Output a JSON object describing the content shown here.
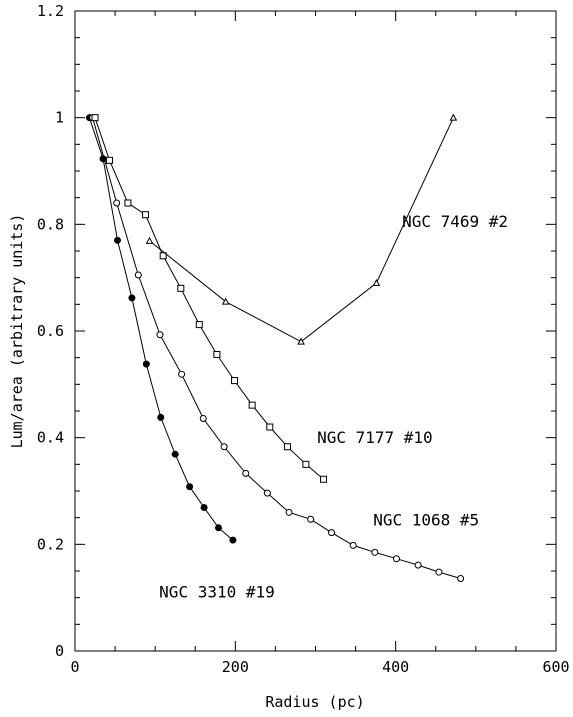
{
  "chart_data": {
    "type": "line",
    "xlabel": "Radius (pc)",
    "ylabel": "Lum/area (arbitrary units)",
    "xlim": [
      0,
      600
    ],
    "ylim": [
      0,
      1.2
    ],
    "xticks": [
      0,
      200,
      400,
      600
    ],
    "yticks": [
      0,
      0.2,
      0.4,
      0.6,
      0.8,
      1,
      1.2
    ],
    "xtick_labels": [
      "0",
      "200",
      "400",
      "600"
    ],
    "ytick_labels": [
      "0",
      "0.2",
      "0.4",
      "0.6",
      "0.8",
      "1",
      "1.2"
    ],
    "grid": false,
    "series": [
      {
        "name": "NGC 3310 #19",
        "marker": "filled-circle",
        "points": [
          [
            18,
            1.0
          ],
          [
            35,
            0.923
          ],
          [
            53,
            0.77
          ],
          [
            71,
            0.662
          ],
          [
            89,
            0.538
          ],
          [
            107,
            0.438
          ],
          [
            125,
            0.369
          ],
          [
            143,
            0.308
          ],
          [
            161,
            0.269
          ],
          [
            179,
            0.231
          ],
          [
            197,
            0.208
          ]
        ]
      },
      {
        "name": "NGC 1068 #5",
        "marker": "open-circle",
        "points": [
          [
            22,
            1.0
          ],
          [
            52,
            0.84
          ],
          [
            79,
            0.705
          ],
          [
            106,
            0.593
          ],
          [
            133,
            0.519
          ],
          [
            160,
            0.436
          ],
          [
            186,
            0.383
          ],
          [
            213,
            0.333
          ],
          [
            240,
            0.296
          ],
          [
            267,
            0.26
          ],
          [
            294,
            0.247
          ],
          [
            320,
            0.222
          ],
          [
            347,
            0.198
          ],
          [
            374,
            0.185
          ],
          [
            401,
            0.173
          ],
          [
            428,
            0.161
          ],
          [
            454,
            0.148
          ],
          [
            481,
            0.136
          ]
        ]
      },
      {
        "name": "NGC 7177 #10",
        "marker": "open-square",
        "points": [
          [
            25,
            1.0
          ],
          [
            43,
            0.92
          ],
          [
            66,
            0.84
          ],
          [
            88,
            0.818
          ],
          [
            110,
            0.741
          ],
          [
            132,
            0.68
          ],
          [
            155,
            0.612
          ],
          [
            177,
            0.556
          ],
          [
            199,
            0.507
          ],
          [
            221,
            0.461
          ],
          [
            243,
            0.42
          ],
          [
            265,
            0.383
          ],
          [
            288,
            0.35
          ],
          [
            310,
            0.322
          ]
        ]
      },
      {
        "name": "NGC 7469 #2",
        "marker": "open-triangle",
        "points": [
          [
            93,
            0.769
          ],
          [
            188,
            0.655
          ],
          [
            282,
            0.58
          ],
          [
            376,
            0.69
          ],
          [
            472,
            1.0
          ]
        ]
      }
    ],
    "annotations": [
      {
        "text": "NGC 7469 #2",
        "x": 408,
        "y": 0.795
      },
      {
        "text": "NGC 7177 #10",
        "x": 302,
        "y": 0.39
      },
      {
        "text": "NGC 1068 #5",
        "x": 372,
        "y": 0.235
      },
      {
        "text": "NGC 3310 #19",
        "x": 105,
        "y": 0.1
      }
    ]
  }
}
